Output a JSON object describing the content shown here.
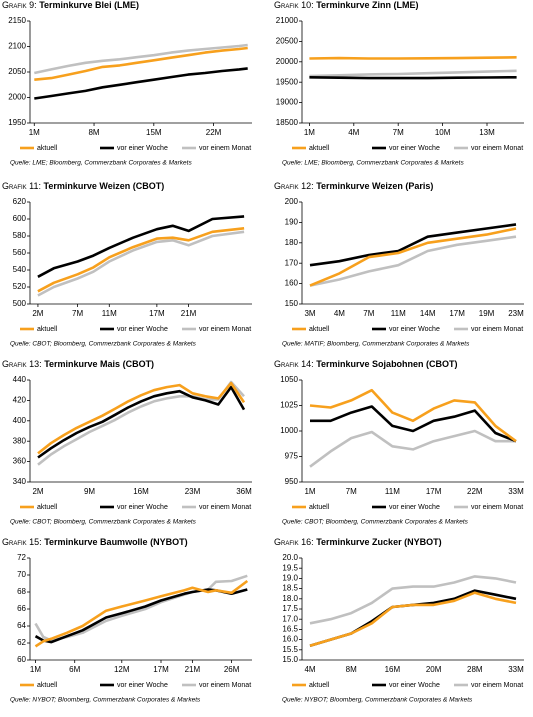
{
  "chart_data": [
    {
      "type": "line",
      "figure": "Grafik 9:",
      "title": "Terminkurve Blei (LME)",
      "x": [
        1,
        3,
        5,
        7,
        9,
        11,
        13,
        15,
        17,
        19,
        21,
        23,
        25,
        26
      ],
      "xlim": [
        0.5,
        26.5
      ],
      "xticks": [
        {
          "value": 1,
          "label": "1M"
        },
        {
          "value": 8,
          "label": "8M"
        },
        {
          "value": 15,
          "label": "15M"
        },
        {
          "value": 22,
          "label": "22M"
        }
      ],
      "ylim": [
        1950,
        2150
      ],
      "yticks": [
        1950,
        2000,
        2050,
        2100,
        2150
      ],
      "series": [
        {
          "name": "aktuell",
          "color": "#f7a01d",
          "values": [
            2035,
            2038,
            2045,
            2052,
            2060,
            2063,
            2068,
            2073,
            2078,
            2083,
            2088,
            2092,
            2095,
            2097
          ]
        },
        {
          "name": "vor einer Woche",
          "color": "#000000",
          "values": [
            1998,
            2003,
            2008,
            2013,
            2020,
            2025,
            2030,
            2035,
            2040,
            2045,
            2048,
            2052,
            2055,
            2057
          ]
        },
        {
          "name": "vor einem Monat",
          "color": "#c0c0c0",
          "values": [
            2048,
            2055,
            2062,
            2068,
            2072,
            2075,
            2079,
            2083,
            2088,
            2092,
            2095,
            2098,
            2101,
            2103
          ]
        }
      ],
      "source": "Quelle: LME; Bloomberg, Commerzbank Corporates & Markets"
    },
    {
      "type": "line",
      "figure": "Grafik 10:",
      "title": "Terminkurve Zinn (LME)",
      "x": [
        1,
        3,
        5,
        7,
        9,
        11,
        13,
        15
      ],
      "xlim": [
        0.5,
        15.5
      ],
      "xticks": [
        {
          "value": 1,
          "label": "1M"
        },
        {
          "value": 4,
          "label": "4M"
        },
        {
          "value": 7,
          "label": "7M"
        },
        {
          "value": 10,
          "label": "10M"
        },
        {
          "value": 13,
          "label": "13M"
        }
      ],
      "ylim": [
        18500,
        21000
      ],
      "yticks": [
        18500,
        19000,
        19500,
        20000,
        20500,
        21000
      ],
      "series": [
        {
          "name": "aktuell",
          "color": "#f7a01d",
          "values": [
            20080,
            20090,
            20080,
            20080,
            20085,
            20090,
            20100,
            20110
          ]
        },
        {
          "name": "vor einer Woche",
          "color": "#000000",
          "values": [
            19620,
            19610,
            19600,
            19600,
            19600,
            19610,
            19615,
            19620
          ]
        },
        {
          "name": "vor einem Monat",
          "color": "#c0c0c0",
          "values": [
            19650,
            19670,
            19690,
            19700,
            19720,
            19740,
            19760,
            19780
          ]
        }
      ],
      "source": "Quelle: LME; Bloomberg, Commerzbank Corporates & Markets"
    },
    {
      "type": "line",
      "figure": "Grafik 11:",
      "title": "Terminkurve Weizen (CBOT)",
      "x": [
        2,
        4,
        7,
        9,
        11,
        14,
        17,
        19,
        21,
        24,
        28
      ],
      "xlim": [
        1,
        29
      ],
      "xticks": [
        {
          "value": 2,
          "label": "2M"
        },
        {
          "value": 7,
          "label": "7M"
        },
        {
          "value": 11,
          "label": "11M"
        },
        {
          "value": 17,
          "label": "17M"
        },
        {
          "value": 21,
          "label": "21M"
        }
      ],
      "ylim": [
        500,
        620
      ],
      "yticks": [
        500,
        520,
        540,
        560,
        580,
        600,
        620
      ],
      "series": [
        {
          "name": "aktuell",
          "color": "#f7a01d",
          "values": [
            515,
            525,
            535,
            543,
            555,
            567,
            577,
            578,
            575,
            585,
            589
          ]
        },
        {
          "name": "vor einer Woche",
          "color": "#000000",
          "values": [
            532,
            542,
            550,
            557,
            566,
            578,
            588,
            592,
            586,
            600,
            603
          ]
        },
        {
          "name": "vor einem Monat",
          "color": "#c0c0c0",
          "values": [
            510,
            520,
            530,
            538,
            550,
            563,
            573,
            575,
            569,
            580,
            585
          ]
        }
      ],
      "source": "Quelle: CBOT; Bloomberg, Commerzbank Corporates & Markets"
    },
    {
      "type": "line",
      "figure": "Grafik 12:",
      "title": "Terminkurve Weizen (Paris)",
      "categories": [
        "3M",
        "4M",
        "7M",
        "11M",
        "14M",
        "17M",
        "19M",
        "23M"
      ],
      "ylim": [
        150,
        200
      ],
      "yticks": [
        150,
        160,
        170,
        180,
        190,
        200
      ],
      "series": [
        {
          "name": "aktuell",
          "color": "#f7a01d",
          "values": [
            159,
            165,
            173,
            175,
            180,
            182,
            184,
            187
          ]
        },
        {
          "name": "vor einer Woche",
          "color": "#000000",
          "values": [
            169,
            171,
            174,
            176,
            183,
            185,
            187,
            189
          ]
        },
        {
          "name": "vor einem Monat",
          "color": "#c0c0c0",
          "values": [
            159,
            162,
            166,
            169,
            176,
            179,
            181,
            183
          ]
        }
      ],
      "source": "Quelle: MATIF; Bloomberg, Commerzbank Corporates & Markets"
    },
    {
      "type": "line",
      "figure": "Grafik 13:",
      "title": "Terminkurve Mais (CBOT)",
      "categories": [
        "2M",
        null,
        null,
        null,
        "9M",
        null,
        null,
        null,
        "16M",
        null,
        null,
        null,
        "23M",
        null,
        null,
        null,
        "36M"
      ],
      "ylim": [
        340,
        440
      ],
      "yticks": [
        340,
        360,
        380,
        400,
        420,
        440
      ],
      "series": [
        {
          "name": "aktuell",
          "color": "#f7a01d",
          "values": [
            368,
            378,
            386,
            393,
            399,
            405,
            412,
            419,
            425,
            430,
            433,
            435,
            427,
            424,
            422,
            437,
            418
          ]
        },
        {
          "name": "vor einer Woche",
          "color": "#000000",
          "values": [
            364,
            373,
            381,
            388,
            394,
            399,
            406,
            413,
            419,
            424,
            427,
            429,
            423,
            420,
            416,
            433,
            411
          ]
        },
        {
          "name": "vor einem Monat",
          "color": "#c0c0c0",
          "values": [
            357,
            367,
            375,
            382,
            389,
            395,
            401,
            408,
            414,
            419,
            422,
            424,
            424,
            421,
            421,
            438,
            424
          ]
        }
      ],
      "source": "Quelle: CBOT; Bloomberg, Commerzbank Corporates & Markets"
    },
    {
      "type": "line",
      "figure": "Grafik 14:",
      "title": "Terminkurve Sojabohnen (CBOT)",
      "categories": [
        "1M",
        null,
        "7M",
        null,
        "11M",
        null,
        "17M",
        null,
        "22M",
        null,
        "33M"
      ],
      "ylim": [
        950,
        1050
      ],
      "yticks": [
        950,
        975,
        1000,
        1025,
        1050
      ],
      "series": [
        {
          "name": "aktuell",
          "color": "#f7a01d",
          "values": [
            1025,
            1023,
            1030,
            1040,
            1018,
            1010,
            1022,
            1030,
            1028,
            1005,
            990
          ]
        },
        {
          "name": "vor einer Woche",
          "color": "#000000",
          "values": [
            1010,
            1010,
            1018,
            1024,
            1005,
            1000,
            1010,
            1014,
            1020,
            998,
            990
          ]
        },
        {
          "name": "vor einem Monat",
          "color": "#c0c0c0",
          "values": [
            965,
            980,
            993,
            999,
            985,
            982,
            990,
            995,
            1000,
            990,
            990
          ]
        }
      ],
      "source": "Quelle: CBOT; Bloomberg, Commerzbank Corporates & Markets"
    },
    {
      "type": "line",
      "figure": "Grafik 15:",
      "title": "Terminkurve Baumwolle (NYBOT)",
      "x": [
        1,
        2,
        3,
        5,
        7,
        10,
        12,
        15,
        17,
        20,
        21,
        23,
        24,
        26,
        28
      ],
      "xlim": [
        0.3,
        28.6
      ],
      "xticks": [
        {
          "value": 1,
          "label": "1M"
        },
        {
          "value": 6,
          "label": "6M"
        },
        {
          "value": 12,
          "label": "12M"
        },
        {
          "value": 17,
          "label": "17M"
        },
        {
          "value": 21,
          "label": "21M"
        },
        {
          "value": 26,
          "label": "26M"
        }
      ],
      "ylim": [
        60,
        72
      ],
      "yticks": [
        60,
        62,
        64,
        66,
        68,
        70,
        72
      ],
      "series": [
        {
          "name": "aktuell",
          "color": "#f7a01d",
          "values": [
            61.6,
            62.2,
            62.5,
            63.2,
            64.0,
            65.8,
            66.3,
            67.0,
            67.5,
            68.2,
            68.5,
            68.0,
            68.2,
            67.9,
            69.3
          ]
        },
        {
          "name": "vor einer Woche",
          "color": "#000000",
          "values": [
            62.8,
            62.3,
            62.1,
            62.8,
            63.5,
            65.0,
            65.5,
            66.3,
            67.0,
            67.8,
            68.0,
            68.3,
            68.2,
            67.8,
            68.3
          ]
        },
        {
          "name": "vor einem Monat",
          "color": "#c0c0c0",
          "values": [
            64.3,
            62.7,
            62.3,
            62.7,
            63.2,
            64.6,
            65.2,
            66.0,
            66.8,
            67.7,
            68.0,
            68.3,
            69.2,
            69.3,
            69.9
          ]
        }
      ],
      "source": "Quelle: NYBOT; Bloomberg, Commerzbank Corporates & Markets"
    },
    {
      "type": "line",
      "figure": "Grafik 16:",
      "title": "Terminkurve Zucker (NYBOT)",
      "categories": [
        "4M",
        null,
        "8M",
        null,
        "16M",
        null,
        "20M",
        null,
        "28M",
        null,
        "33M"
      ],
      "ylim": [
        15,
        20
      ],
      "yticks": [
        {
          "value": 15,
          "label": "15.0"
        },
        {
          "value": 15.5,
          "label": "15.5"
        },
        {
          "value": 16,
          "label": "16.0"
        },
        {
          "value": 16.5,
          "label": "16.5"
        },
        {
          "value": 17,
          "label": "17.0"
        },
        {
          "value": 17.5,
          "label": "17.5"
        },
        {
          "value": 18,
          "label": "18.0"
        },
        {
          "value": 18.5,
          "label": "18.5"
        },
        {
          "value": 19,
          "label": "19.0"
        },
        {
          "value": 19.5,
          "label": "19.5"
        },
        {
          "value": 20,
          "label": "20.0"
        }
      ],
      "series": [
        {
          "name": "aktuell",
          "color": "#f7a01d",
          "values": [
            15.7,
            16.0,
            16.3,
            16.8,
            17.6,
            17.7,
            17.7,
            17.9,
            18.3,
            18.0,
            17.8
          ]
        },
        {
          "name": "vor einer Woche",
          "color": "#000000",
          "values": [
            15.7,
            16.0,
            16.3,
            16.9,
            17.6,
            17.7,
            17.8,
            18.0,
            18.4,
            18.2,
            18.0
          ]
        },
        {
          "name": "vor einem Monat",
          "color": "#c0c0c0",
          "values": [
            16.8,
            17.0,
            17.3,
            17.8,
            18.5,
            18.6,
            18.6,
            18.8,
            19.1,
            19.0,
            18.8
          ]
        }
      ],
      "source": "Quelle: NYBOT; Bloomberg, Commerzbank Corporates & Markets"
    }
  ]
}
